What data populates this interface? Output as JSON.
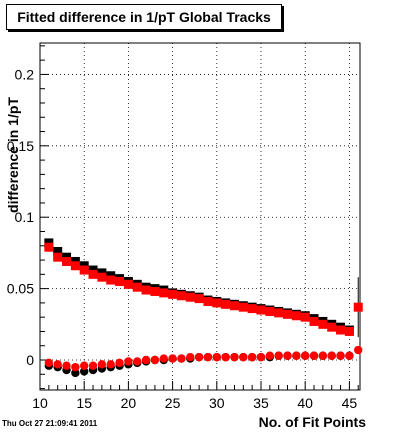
{
  "chart_data": {
    "type": "scatter",
    "title": "Fitted difference in 1/pT  Global Tracks",
    "xlabel": "No. of Fit Points",
    "ylabel": "difference in 1/pT",
    "xlim": [
      10,
      46.2
    ],
    "ylim": [
      -0.021,
      0.222
    ],
    "xticks": [
      10,
      15,
      20,
      25,
      30,
      35,
      40,
      45
    ],
    "yticks": [
      0,
      0.05,
      0.1,
      0.15,
      0.2
    ],
    "ytick_labels": [
      "0",
      "0.05",
      "0.1",
      "0.15",
      "0.2"
    ],
    "grid": true,
    "timestamp": "Thu Oct 27 21:09:41 2011",
    "series": [
      {
        "color": "#000000",
        "marker": "square",
        "x": [
          11,
          12,
          13,
          14,
          15,
          16,
          17,
          18,
          19,
          20,
          21,
          22,
          23,
          24,
          25,
          26,
          27,
          28,
          29,
          30,
          31,
          32,
          33,
          34,
          35,
          36,
          37,
          38,
          39,
          40,
          41,
          42,
          43,
          44,
          45
        ],
        "y": [
          0.082,
          0.076,
          0.072,
          0.069,
          0.066,
          0.063,
          0.061,
          0.059,
          0.057,
          0.055,
          0.053,
          0.051,
          0.05,
          0.049,
          0.047,
          0.046,
          0.045,
          0.044,
          0.042,
          0.041,
          0.04,
          0.039,
          0.038,
          0.037,
          0.036,
          0.035,
          0.034,
          0.033,
          0.032,
          0.031,
          0.029,
          0.027,
          0.025,
          0.023,
          0.021
        ]
      },
      {
        "color": "#ff0000",
        "marker": "square",
        "x": [
          11,
          12,
          13,
          14,
          15,
          16,
          17,
          18,
          19,
          20,
          21,
          22,
          23,
          24,
          25,
          26,
          27,
          28,
          29,
          30,
          31,
          32,
          33,
          34,
          35,
          36,
          37,
          38,
          39,
          40,
          41,
          42,
          43,
          44,
          45,
          46
        ],
        "y": [
          0.079,
          0.072,
          0.069,
          0.066,
          0.063,
          0.06,
          0.058,
          0.056,
          0.055,
          0.053,
          0.051,
          0.049,
          0.048,
          0.047,
          0.046,
          0.045,
          0.044,
          0.043,
          0.041,
          0.04,
          0.039,
          0.038,
          0.037,
          0.036,
          0.035,
          0.034,
          0.033,
          0.032,
          0.031,
          0.03,
          0.027,
          0.025,
          0.023,
          0.021,
          0.02,
          0.037
        ],
        "err_high": [
          0,
          0,
          0,
          0,
          0,
          0,
          0,
          0,
          0,
          0,
          0,
          0,
          0,
          0,
          0,
          0,
          0,
          0,
          0,
          0,
          0,
          0,
          0,
          0,
          0,
          0,
          0,
          0,
          0,
          0,
          0,
          0,
          0,
          0,
          0,
          0.021
        ],
        "err_low": [
          0,
          0,
          0,
          0,
          0,
          0,
          0,
          0,
          0,
          0,
          0,
          0,
          0,
          0,
          0,
          0,
          0,
          0,
          0,
          0,
          0,
          0,
          0,
          0,
          0,
          0,
          0,
          0,
          0,
          0,
          0,
          0,
          0,
          0,
          0,
          0.021
        ]
      },
      {
        "color": "#000000",
        "marker": "circle",
        "x": [
          11,
          12,
          13,
          14,
          15,
          16,
          17,
          18,
          19,
          20,
          21,
          22,
          23,
          24,
          25,
          26,
          27,
          28,
          29,
          30,
          31,
          32,
          33,
          34,
          35,
          36,
          37,
          38,
          39,
          40,
          41,
          42,
          43,
          44,
          45
        ],
        "y": [
          -0.004,
          -0.005,
          -0.007,
          -0.009,
          -0.008,
          -0.007,
          -0.006,
          -0.005,
          -0.004,
          -0.003,
          -0.002,
          -0.001,
          0.0,
          0.0,
          0.001,
          0.001,
          0.001,
          0.002,
          0.002,
          0.002,
          0.002,
          0.002,
          0.002,
          0.002,
          0.002,
          0.002,
          0.003,
          0.003,
          0.003,
          0.003,
          0.003,
          0.003,
          0.003,
          0.003,
          0.003
        ]
      },
      {
        "color": "#ff0000",
        "marker": "circle",
        "x": [
          11,
          12,
          13,
          14,
          15,
          16,
          17,
          18,
          19,
          20,
          21,
          22,
          23,
          24,
          25,
          26,
          27,
          28,
          29,
          30,
          31,
          32,
          33,
          34,
          35,
          36,
          37,
          38,
          39,
          40,
          41,
          42,
          43,
          44,
          45,
          46
        ],
        "y": [
          -0.002,
          -0.003,
          -0.004,
          -0.005,
          -0.004,
          -0.004,
          -0.003,
          -0.003,
          -0.002,
          -0.001,
          -0.001,
          0.0,
          0.0,
          0.001,
          0.001,
          0.001,
          0.002,
          0.002,
          0.002,
          0.002,
          0.002,
          0.002,
          0.002,
          0.002,
          0.002,
          0.003,
          0.003,
          0.003,
          0.003,
          0.003,
          0.003,
          0.003,
          0.003,
          0.003,
          0.003,
          0.007
        ]
      }
    ]
  }
}
